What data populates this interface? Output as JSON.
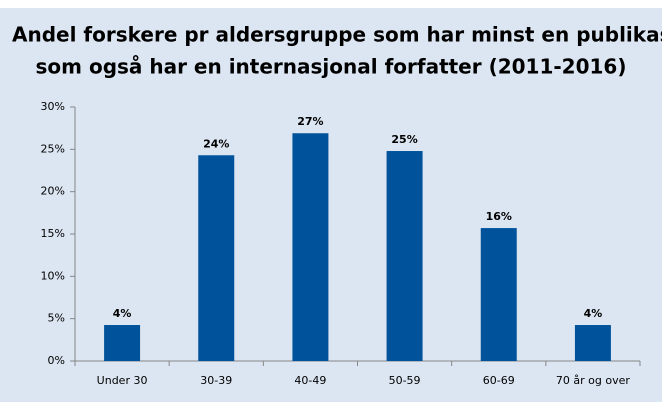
{
  "chart_data": {
    "type": "bar",
    "title": [
      "Andel forskere pr aldersgruppe som har minst en publikasjon",
      "som også har en internasjonal forfatter (2011-2016)"
    ],
    "categories": [
      "Under 30",
      "30-39",
      "40-49",
      "50-59",
      "60-69",
      "70 år og over"
    ],
    "values": [
      4.25,
      24.3,
      26.9,
      24.8,
      15.7,
      4.25
    ],
    "value_labels": [
      "4%",
      "24%",
      "27%",
      "25%",
      "16%",
      "4%"
    ],
    "color": "#00539b",
    "ylim": [
      0,
      30
    ],
    "yticks": [
      {
        "value": 0,
        "label": "0%"
      },
      {
        "value": 5,
        "label": "5%"
      },
      {
        "value": 10,
        "label": "10%"
      },
      {
        "value": 15,
        "label": "15%"
      },
      {
        "value": 20,
        "label": "20%"
      },
      {
        "value": 25,
        "label": "25%"
      },
      {
        "value": 30,
        "label": "30%"
      }
    ]
  }
}
